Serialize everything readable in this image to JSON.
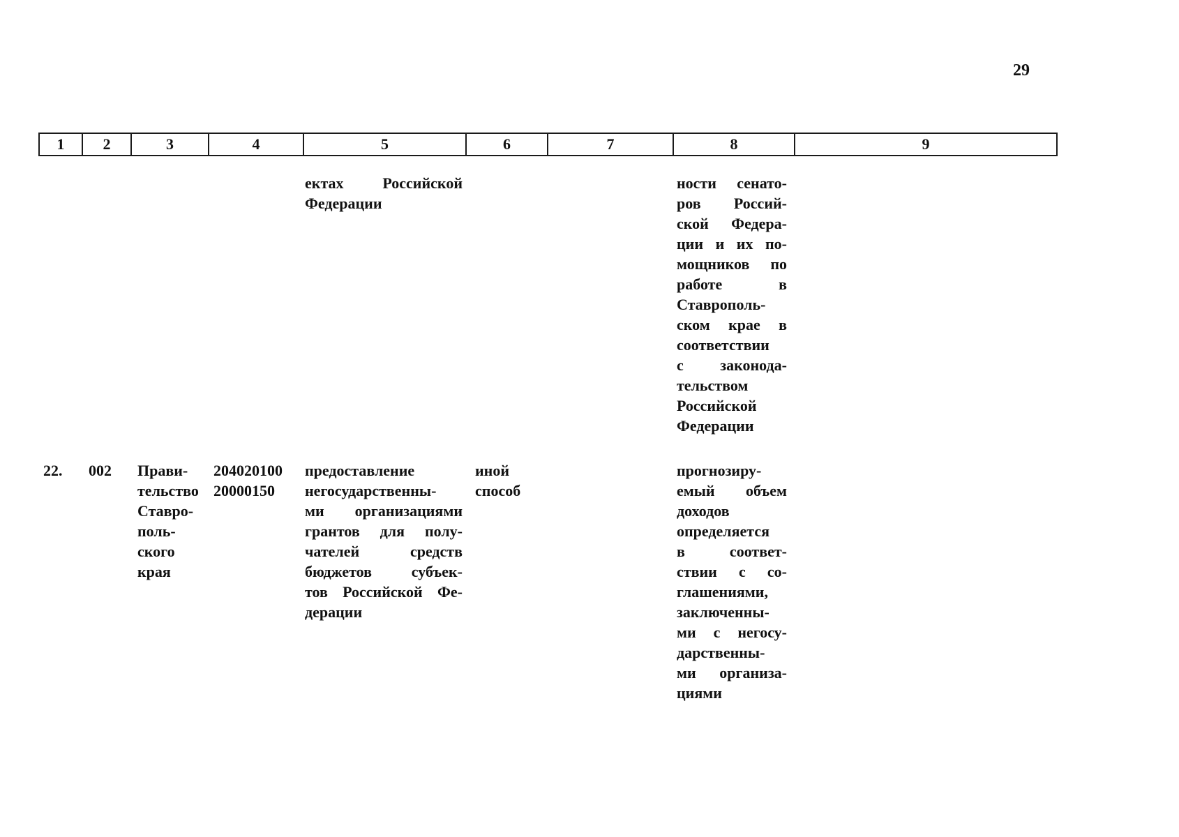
{
  "page": {
    "number": "29"
  },
  "table": {
    "header": [
      "1",
      "2",
      "3",
      "4",
      "5",
      "6",
      "7",
      "8",
      "9"
    ]
  },
  "rows": [
    {
      "col5_lines": [
        "ектах Российской",
        "Федерации"
      ],
      "col8_lines": [
        "ности сенато-",
        "ров Россий-",
        "ской Федера-",
        "ции и их по-",
        "мощников по",
        "работе в",
        "Ставрополь-",
        "ском крае в",
        "соответствии",
        "с законода-",
        "тельством",
        "Российской",
        "Федерации"
      ]
    },
    {
      "col1": "22.",
      "col2": "002",
      "col3_lines": [
        "Прави-",
        "тельство",
        "Ставро-",
        "поль-",
        "ского",
        "края"
      ],
      "col4_lines": [
        "204020100",
        "20000150"
      ],
      "col5_lines": [
        "предоставление",
        "негосударственны-",
        "ми организациями",
        "грантов для полу-",
        "чателей средств",
        "бюджетов субъек-",
        "тов Российской Фе-",
        "дерации"
      ],
      "col6_lines": [
        "иной",
        "способ"
      ],
      "col8_lines": [
        "прогнозиру-",
        "емый объем",
        "доходов",
        "определяется",
        "в соответ-",
        "ствии с со-",
        "глашениями,",
        "заключенны-",
        "ми с негосу-",
        "дарственны-",
        "ми организа-",
        "циями"
      ]
    }
  ]
}
